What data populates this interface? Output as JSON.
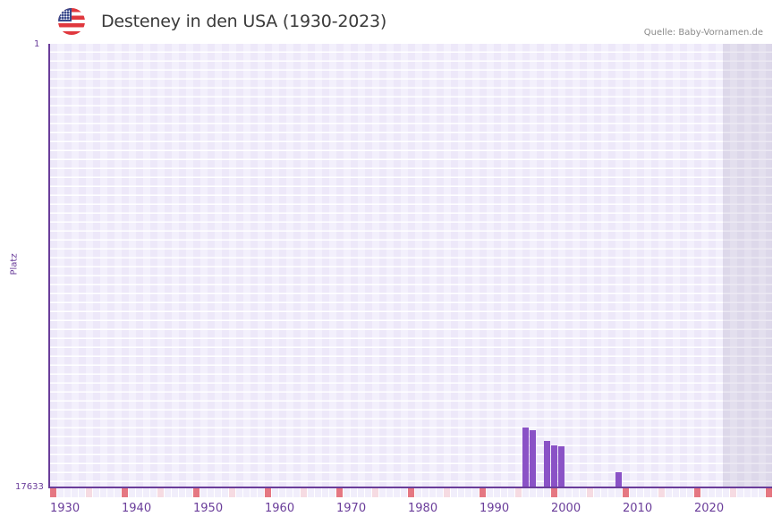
{
  "header": {
    "flag_icon": "us-flag-icon",
    "title": "Desteney in den USA (1930-2023)",
    "source": "Quelle: Baby-Vornamen.de"
  },
  "axes": {
    "y_title": "Platz",
    "y_top_label": "1",
    "y_bottom_label": "17633",
    "x_ticks": [
      "1930",
      "1940",
      "1950",
      "1960",
      "1970",
      "1980",
      "1990",
      "2000",
      "2010",
      "2020"
    ]
  },
  "colors": {
    "bar": "#8a52c6",
    "axis": "#6a3d9a",
    "decade_marker": "#e57782",
    "half_decade_marker": "#f6dbe2",
    "future_shade": "#ddd8ea"
  },
  "chart_data": {
    "type": "bar",
    "title": "Desteney in den USA (1930-2023)",
    "xlabel": "",
    "ylabel": "Platz",
    "ylim": [
      17633,
      1
    ],
    "y_inverted": true,
    "x_range": [
      1930,
      2030
    ],
    "grid": true,
    "legend": null,
    "categories": [
      "1996",
      "1997",
      "1999",
      "2000",
      "2001",
      "2007",
      "2009"
    ],
    "values": [
      15250,
      15360,
      15790,
      15960,
      16000,
      17600,
      17030
    ],
    "annotations": [
      "Shaded region from 2024 onward (no data yet)"
    ]
  }
}
